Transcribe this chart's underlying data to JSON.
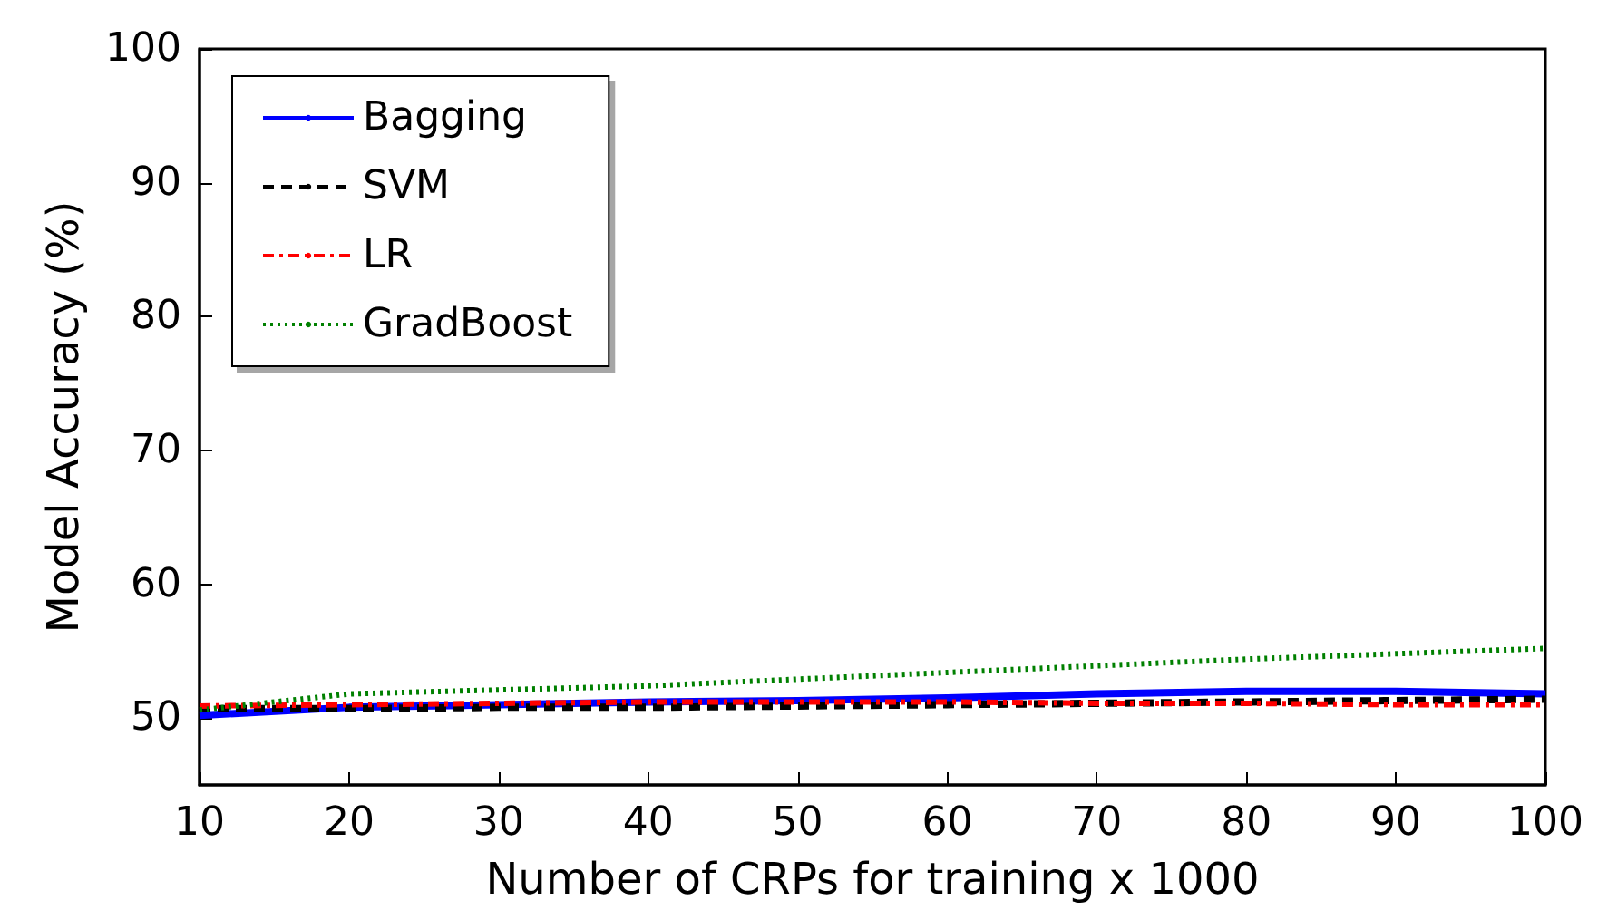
{
  "chart_data": {
    "type": "line",
    "xlabel": "Number of CRPs for training x 1000",
    "ylabel": "Model Accuracy (%)",
    "x": [
      10,
      20,
      30,
      40,
      50,
      60,
      70,
      80,
      90,
      100
    ],
    "series": [
      {
        "name": "Bagging",
        "color": "#0000ff",
        "line_style": "solid",
        "values": [
          50.2,
          50.8,
          51.0,
          51.2,
          51.3,
          51.5,
          51.8,
          52.0,
          52.0,
          51.8
        ]
      },
      {
        "name": "SVM",
        "color": "#000000",
        "line_style": "dashed",
        "values": [
          50.7,
          50.7,
          50.8,
          50.8,
          50.9,
          51.0,
          51.1,
          51.2,
          51.3,
          51.4
        ]
      },
      {
        "name": "LR",
        "color": "#ff0000",
        "line_style": "dashdot",
        "values": [
          50.9,
          51.0,
          51.1,
          51.2,
          51.2,
          51.2,
          51.1,
          51.1,
          51.0,
          51.0
        ]
      },
      {
        "name": "GradBoost",
        "color": "#008000",
        "line_style": "dotted",
        "values": [
          50.6,
          51.8,
          52.1,
          52.4,
          52.9,
          53.4,
          53.9,
          54.4,
          54.8,
          55.2
        ]
      }
    ],
    "xlim": [
      10,
      100
    ],
    "xticks": [
      10,
      20,
      30,
      40,
      50,
      60,
      70,
      80,
      90,
      100
    ],
    "ylim": [
      45,
      100
    ],
    "yticks": [
      50,
      60,
      70,
      80,
      90,
      100
    ],
    "grid": false,
    "legend": "top left",
    "marker": "none"
  }
}
